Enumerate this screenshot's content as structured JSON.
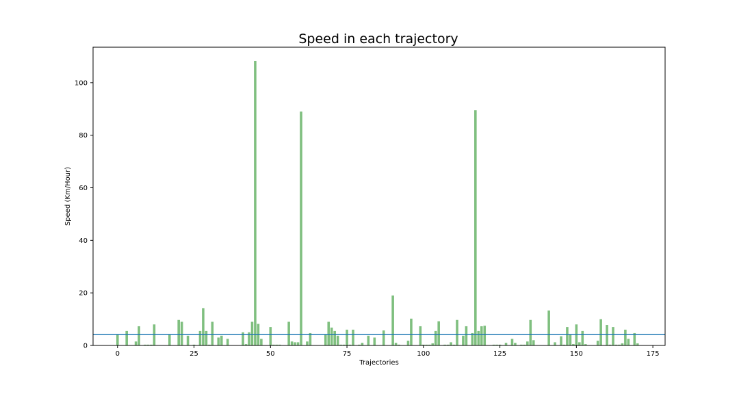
{
  "chart_data": {
    "type": "bar",
    "title": "Speed in each trajectory",
    "xlabel": "Trajectories",
    "ylabel": "Speed (Km/Hour)",
    "xlim": [
      -8,
      179
    ],
    "ylim": [
      0,
      113.5
    ],
    "xticks": [
      0,
      25,
      50,
      75,
      100,
      125,
      150,
      175
    ],
    "yticks": [
      0,
      20,
      40,
      60,
      80,
      100
    ],
    "bar_color": "#7fbf7f",
    "mean_line": {
      "value": 4.2,
      "color": "#1f77b4"
    },
    "x": [
      0,
      1,
      2,
      3,
      4,
      5,
      6,
      7,
      8,
      9,
      10,
      11,
      12,
      13,
      14,
      15,
      16,
      17,
      18,
      19,
      20,
      21,
      22,
      23,
      24,
      25,
      26,
      27,
      28,
      29,
      30,
      31,
      32,
      33,
      34,
      35,
      36,
      37,
      38,
      39,
      40,
      41,
      42,
      43,
      44,
      45,
      46,
      47,
      48,
      49,
      50,
      51,
      52,
      53,
      54,
      55,
      56,
      57,
      58,
      59,
      60,
      61,
      62,
      63,
      64,
      65,
      66,
      67,
      68,
      69,
      70,
      71,
      72,
      73,
      74,
      75,
      76,
      77,
      78,
      79,
      80,
      81,
      82,
      83,
      84,
      85,
      86,
      87,
      88,
      89,
      90,
      91,
      92,
      93,
      94,
      95,
      96,
      97,
      98,
      99,
      100,
      101,
      102,
      103,
      104,
      105,
      106,
      107,
      108,
      109,
      110,
      111,
      112,
      113,
      114,
      115,
      116,
      117,
      118,
      119,
      120,
      121,
      122,
      123,
      124,
      125,
      126,
      127,
      128,
      129,
      130,
      131,
      132,
      133,
      134,
      135,
      136,
      137,
      138,
      139,
      140,
      141,
      142,
      143,
      144,
      145,
      146,
      147,
      148,
      149,
      150,
      151,
      152,
      153,
      154,
      155,
      156,
      157,
      158,
      159,
      160,
      161,
      162,
      163,
      164,
      165,
      166,
      167,
      168,
      169,
      170
    ],
    "values": [
      4.0,
      0.0,
      0.0,
      5.5,
      0.0,
      0.0,
      1.5,
      7.3,
      0.0,
      0.3,
      0.3,
      0.3,
      8.0,
      0.0,
      0.0,
      0.0,
      0.0,
      4.0,
      0.0,
      0.0,
      9.7,
      9.0,
      0.0,
      3.7,
      0.0,
      0.3,
      0.0,
      5.5,
      14.2,
      5.5,
      0.3,
      9.0,
      0.0,
      3.0,
      3.7,
      0.0,
      2.5,
      0.0,
      0.0,
      0.0,
      0.0,
      5.0,
      0.5,
      5.0,
      9.0,
      108.3,
      8.2,
      2.5,
      0.0,
      0.0,
      7.0,
      0.3,
      0.3,
      0.3,
      0.0,
      0.0,
      9.0,
      1.5,
      1.2,
      1.2,
      89.0,
      0.0,
      1.5,
      4.7,
      0.0,
      0.0,
      0.0,
      0.0,
      4.0,
      9.0,
      6.8,
      5.5,
      3.7,
      0.3,
      0.3,
      6.0,
      0.3,
      6.0,
      0.0,
      0.3,
      1.0,
      0.0,
      3.7,
      0.0,
      3.0,
      0.0,
      0.0,
      5.7,
      0.0,
      0.0,
      19.0,
      1.0,
      0.3,
      0.0,
      0.0,
      1.8,
      10.2,
      0.0,
      0.0,
      7.3,
      0.3,
      0.3,
      0.3,
      0.8,
      5.5,
      9.2,
      0.0,
      0.3,
      0.3,
      1.2,
      0.3,
      9.7,
      0.0,
      3.7,
      7.3,
      0.0,
      4.7,
      89.5,
      5.5,
      7.3,
      7.5,
      0.0,
      0.0,
      0.3,
      0.3,
      0.3,
      0.0,
      1.0,
      0.0,
      2.5,
      1.0,
      0.0,
      0.3,
      0.3,
      1.5,
      9.7,
      2.0,
      0.0,
      0.0,
      0.0,
      0.0,
      13.3,
      0.0,
      1.2,
      0.0,
      3.5,
      0.3,
      7.0,
      4.0,
      0.5,
      8.0,
      1.2,
      5.5,
      0.5,
      0.0,
      0.0,
      0.0,
      1.8,
      10.0,
      0.0,
      7.8,
      0.3,
      7.0,
      0.3,
      0.3,
      0.8,
      6.0,
      2.5,
      0.0,
      4.7,
      0.8
    ]
  }
}
